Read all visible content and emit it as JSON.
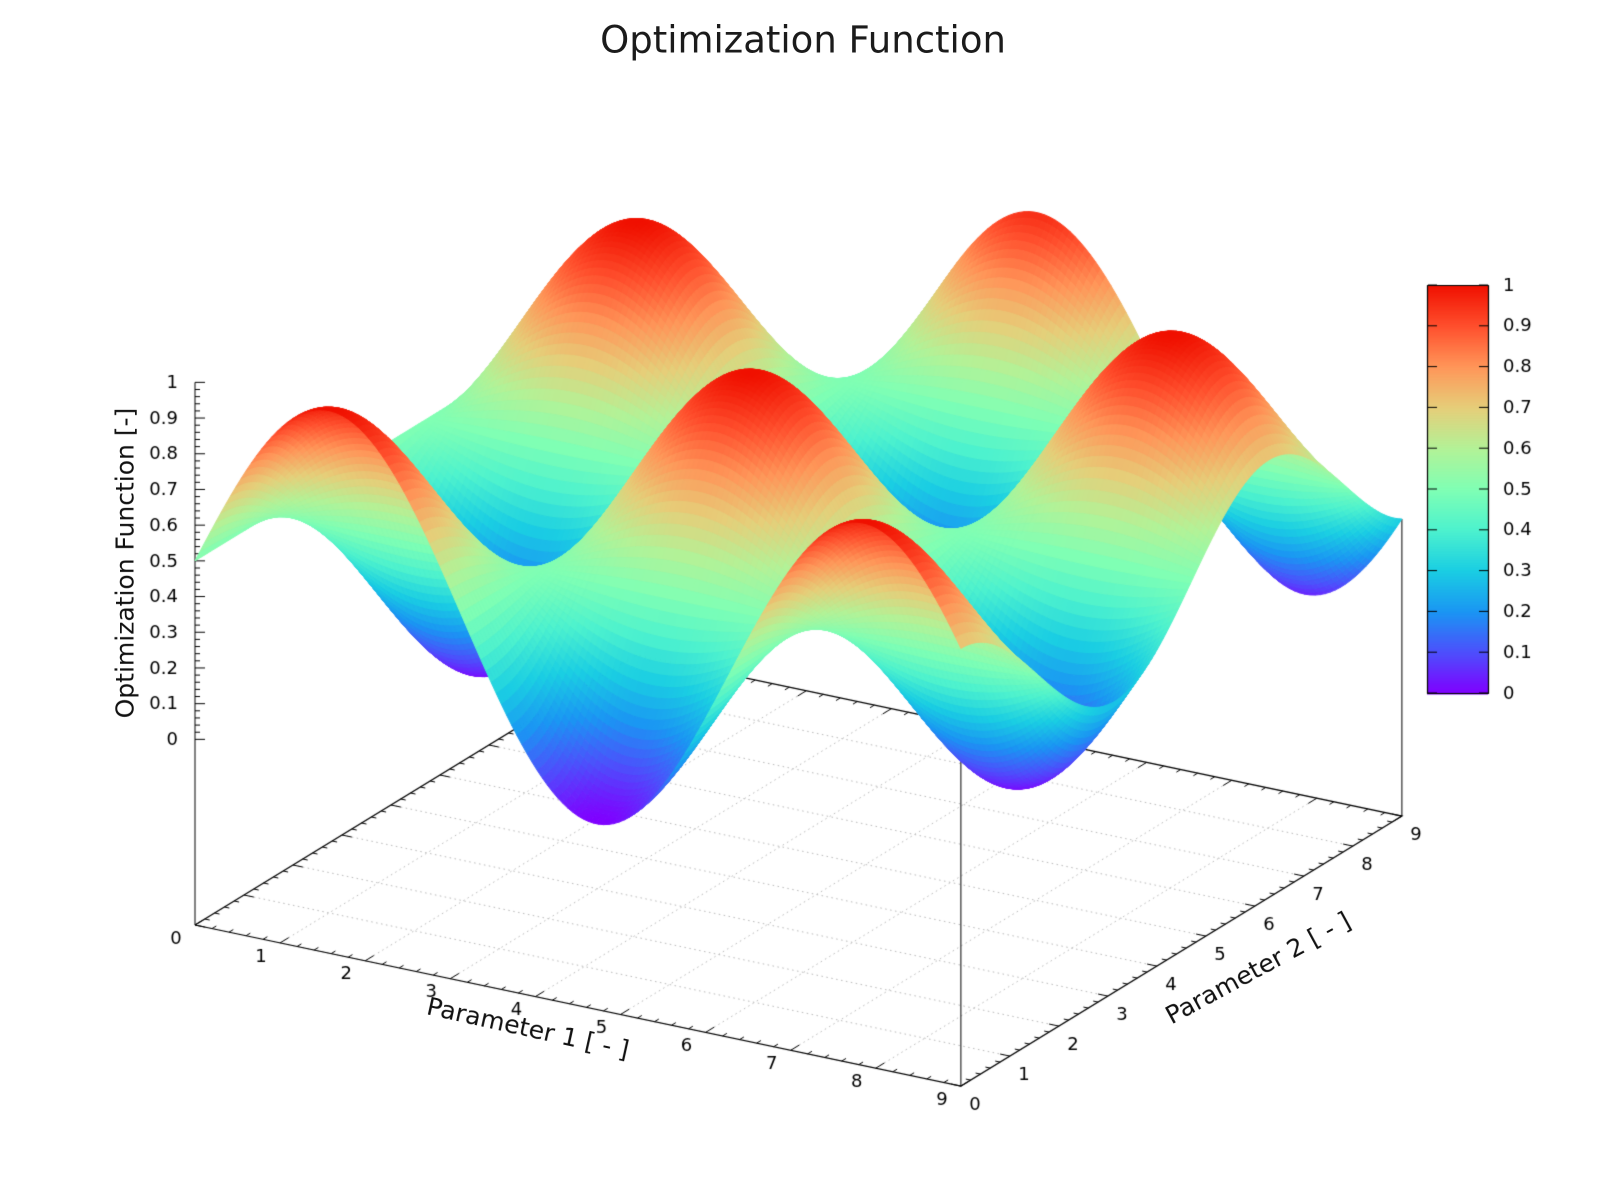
{
  "title": "Optimization Function",
  "axes": {
    "x": {
      "label": "Parameter 1 [ - ]",
      "range": [
        0,
        9
      ],
      "tick_labels": [
        "0",
        "1",
        "2",
        "3",
        "4",
        "5",
        "6",
        "7",
        "8",
        "9"
      ],
      "minor_ticks_per_interval": 4
    },
    "y": {
      "label": "Parameter 2 [ - ]",
      "range": [
        0,
        9
      ],
      "tick_labels": [
        "0",
        "1",
        "2",
        "3",
        "4",
        "5",
        "6",
        "7",
        "8",
        "9"
      ],
      "minor_ticks_per_interval": 4
    },
    "z": {
      "label": "Optimization Function [-]",
      "range": [
        0,
        1
      ],
      "tick_labels": [
        "0",
        "0.1",
        "0.2",
        "0.3",
        "0.4",
        "0.5",
        "0.6",
        "0.7",
        "0.8",
        "0.9",
        "1"
      ],
      "minor_ticks_per_interval": 4
    }
  },
  "colorbar": {
    "min": 0,
    "max": 1,
    "tick_labels": [
      "0",
      "0.1",
      "0.2",
      "0.3",
      "0.4",
      "0.5",
      "0.6",
      "0.7",
      "0.8",
      "0.9",
      "1"
    ],
    "colormap": "rainbow",
    "color_stops": [
      {
        "t": 0.0,
        "color": "#8000ff"
      },
      {
        "t": 0.1,
        "color": "#4d4ffc"
      },
      {
        "t": 0.2,
        "color": "#1a96f3"
      },
      {
        "t": 0.3,
        "color": "#1acee3"
      },
      {
        "t": 0.4,
        "color": "#4df2ce"
      },
      {
        "t": 0.5,
        "color": "#80ffb4"
      },
      {
        "t": 0.6,
        "color": "#b3f297"
      },
      {
        "t": 0.7,
        "color": "#e6ce79"
      },
      {
        "t": 0.8,
        "color": "#ff9659"
      },
      {
        "t": 0.9,
        "color": "#ff4f2d"
      },
      {
        "t": 1.0,
        "color": "#f01000"
      }
    ]
  },
  "chart_data": {
    "type": "surface",
    "title": "Optimization Function",
    "xlabel": "Parameter 1 [ - ]",
    "ylabel": "Parameter 2 [ - ]",
    "zlabel": "Optimization Function [-]",
    "x_range": [
      0,
      9
    ],
    "y_range": [
      0,
      9
    ],
    "z_range": [
      0,
      1
    ],
    "grid": "dotted-base-plane",
    "legend_position": "right-colorbar",
    "function": "f(x,y) = 0.5 + 0.5*sin(x)*cos(y)",
    "expr_js": "0.5 + 0.5*Math.sin(x)*Math.cos(y)",
    "x_samples": [
      0,
      1,
      2,
      3,
      4,
      5,
      6,
      7,
      8,
      9
    ],
    "y_samples": [
      0,
      1,
      2,
      3,
      4,
      5,
      6,
      7,
      8,
      9
    ],
    "z_grid_rows_by_y": [
      [
        0.5,
        0.921,
        0.955,
        0.571,
        0.122,
        0.021,
        0.36,
        0.828,
        0.994,
        0.706
      ],
      [
        0.5,
        0.727,
        0.745,
        0.538,
        0.296,
        0.241,
        0.425,
        0.677,
        0.767,
        0.611
      ],
      [
        0.5,
        0.325,
        0.311,
        0.471,
        0.657,
        0.699,
        0.558,
        0.363,
        0.294,
        0.414
      ],
      [
        0.5,
        0.084,
        0.05,
        0.43,
        0.875,
        0.975,
        0.638,
        0.175,
        0.011,
        0.296
      ],
      [
        0.5,
        0.225,
        0.203,
        0.454,
        0.747,
        0.814,
        0.591,
        0.285,
        0.177,
        0.365
      ],
      [
        0.5,
        0.619,
        0.629,
        0.52,
        0.393,
        0.364,
        0.46,
        0.593,
        0.64,
        0.558
      ],
      [
        0.5,
        0.904,
        0.936,
        0.568,
        0.137,
        0.04,
        0.366,
        0.815,
        0.975,
        0.698
      ],
      [
        0.5,
        0.817,
        0.843,
        0.553,
        0.215,
        0.139,
        0.395,
        0.748,
        0.873,
        0.655
      ],
      [
        0.5,
        0.439,
        0.434,
        0.49,
        0.555,
        0.57,
        0.52,
        0.452,
        0.428,
        0.47
      ],
      [
        0.5,
        0.117,
        0.086,
        0.436,
        0.845,
        0.937,
        0.627,
        0.201,
        0.05,
        0.312
      ]
    ]
  }
}
